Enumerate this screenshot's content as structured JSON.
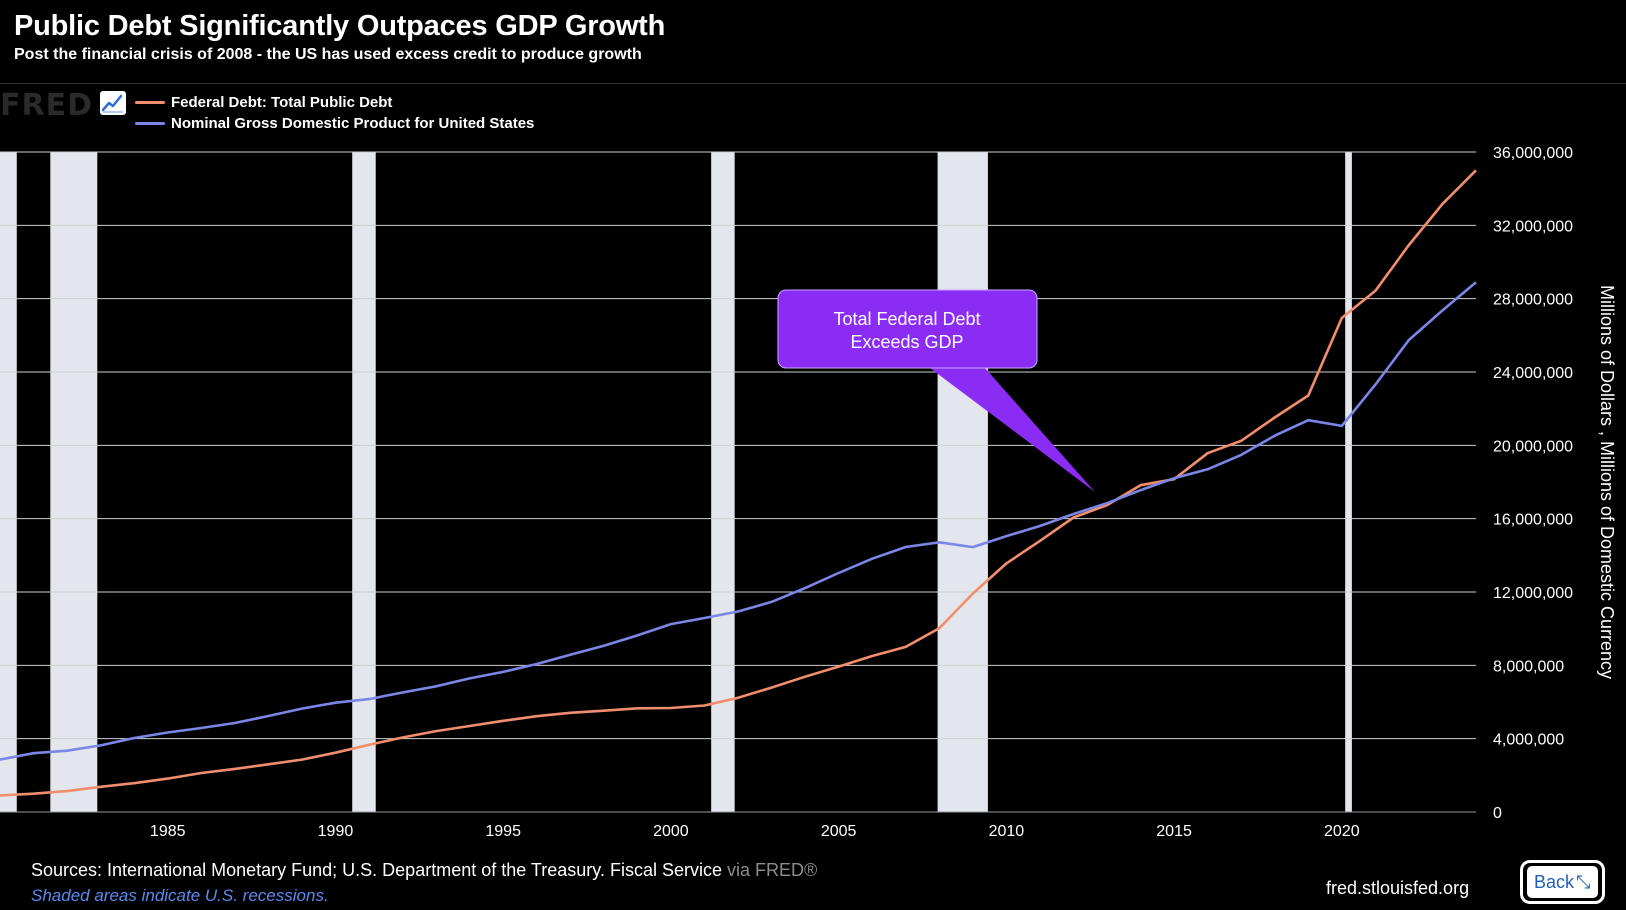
{
  "header": {
    "title": "Public Debt Significantly Outpaces GDP Growth",
    "subtitle": "Post the financial crisis of 2008 - the US has used excess credit to produce growth"
  },
  "logo": {
    "text": "FRED",
    "icon": "chart-line-icon"
  },
  "legend": [
    {
      "label": "Federal Debt: Total Public Debt",
      "color": "#f28e6e"
    },
    {
      "label": "Nominal Gross Domestic Product for United States",
      "color": "#7b86e6"
    }
  ],
  "annotation": {
    "line1": "Total Federal Debt",
    "line2": "Exceeds GDP",
    "color": "#8b2cf5"
  },
  "footer": {
    "sources": "Sources: International Monetary Fund; U.S. Department of the Treasury. Fiscal Service",
    "via": "via FRED®",
    "note": "Shaded areas indicate U.S. recessions.",
    "site": "fred.stlouisfed.org",
    "back_label": "Back"
  },
  "chart_data": {
    "type": "line",
    "title": "Public Debt Significantly Outpaces GDP Growth",
    "subtitle": "Post the financial crisis of 2008 - the US has used excess credit to produce growth",
    "xlabel": "",
    "ylabel": "Millions of Dollars , Millions of Domestic Currency",
    "xlim": [
      1980,
      2024
    ],
    "ylim": [
      0,
      36000000
    ],
    "x_ticks": [
      1985,
      1990,
      1995,
      2000,
      2005,
      2010,
      2015,
      2020
    ],
    "y_ticks": [
      0,
      4000000,
      8000000,
      12000000,
      16000000,
      20000000,
      24000000,
      28000000,
      32000000,
      36000000
    ],
    "y_tick_labels": [
      "0",
      "4,000,000",
      "8,000,000",
      "12,000,000",
      "16,000,000",
      "20,000,000",
      "24,000,000",
      "28,000,000",
      "32,000,000",
      "36,000,000"
    ],
    "grid": true,
    "legend_position": "top-left",
    "recessions": [
      [
        1980.0,
        1980.5
      ],
      [
        1981.5,
        1982.9
      ],
      [
        1990.5,
        1991.2
      ],
      [
        2001.2,
        2001.9
      ],
      [
        2007.95,
        2009.45
      ],
      [
        2020.1,
        2020.3
      ]
    ],
    "series": [
      {
        "name": "Federal Debt: Total Public Debt",
        "color": "#f28e6e",
        "x": [
          1980,
          1981,
          1982,
          1983,
          1984,
          1985,
          1986,
          1987,
          1988,
          1989,
          1990,
          1991,
          1992,
          1993,
          1994,
          1995,
          1996,
          1997,
          1998,
          1999,
          2000,
          2001,
          2002,
          2003,
          2004,
          2005,
          2006,
          2007,
          2008,
          2009,
          2010,
          2011,
          2012,
          2013,
          2014,
          2015,
          2016,
          2017,
          2018,
          2019,
          2020,
          2021,
          2022,
          2023,
          2024
        ],
        "values": [
          907000,
          998000,
          1142000,
          1377000,
          1572000,
          1823000,
          2125000,
          2350000,
          2602000,
          2857000,
          3233000,
          3665000,
          4065000,
          4411000,
          4693000,
          4974000,
          5225000,
          5413000,
          5526000,
          5656000,
          5674000,
          5807000,
          6228000,
          6783000,
          7379000,
          7933000,
          8507000,
          9008000,
          10025000,
          11910000,
          13562000,
          14790000,
          16066000,
          16738000,
          17824000,
          18151000,
          19573000,
          20245000,
          21516000,
          22719000,
          26945000,
          28430000,
          30929000,
          33167000,
          35000000
        ]
      },
      {
        "name": "Nominal Gross Domestic Product for United States",
        "color": "#7b86e6",
        "x": [
          1980,
          1981,
          1982,
          1983,
          1984,
          1985,
          1986,
          1987,
          1988,
          1989,
          1990,
          1991,
          1992,
          1993,
          1994,
          1995,
          1996,
          1997,
          1998,
          1999,
          2000,
          2001,
          2002,
          2003,
          2004,
          2005,
          2006,
          2007,
          2008,
          2009,
          2010,
          2011,
          2012,
          2013,
          2014,
          2015,
          2016,
          2017,
          2018,
          2019,
          2020,
          2021,
          2022,
          2023,
          2024
        ],
        "values": [
          2857000,
          3207000,
          3344000,
          3634000,
          4038000,
          4339000,
          4580000,
          4855000,
          5236000,
          5642000,
          5963000,
          6158000,
          6520000,
          6859000,
          7287000,
          7640000,
          8073000,
          8578000,
          9063000,
          9631000,
          10251000,
          10582000,
          10936000,
          11458000,
          12214000,
          13037000,
          13815000,
          14452000,
          14713000,
          14449000,
          15049000,
          15600000,
          16254000,
          16843000,
          17551000,
          18206000,
          18695000,
          19480000,
          20527000,
          21373000,
          21060000,
          23315000,
          25744000,
          27360000,
          28900000
        ]
      }
    ]
  }
}
